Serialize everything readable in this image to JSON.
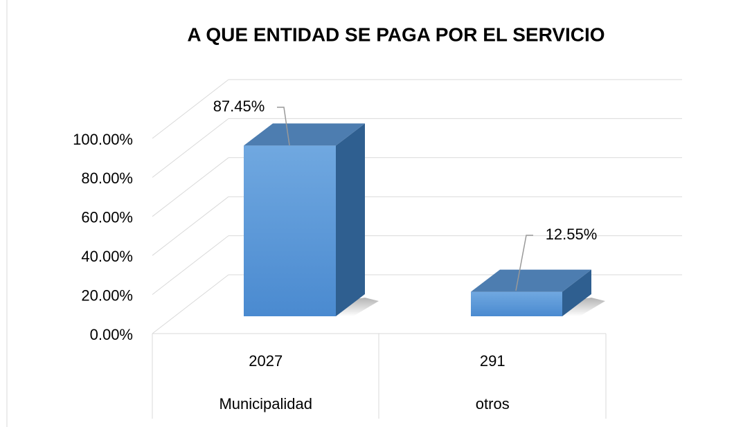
{
  "chart_data": {
    "type": "bar3d",
    "title": "A QUE ENTIDAD SE PAGA POR EL SERVICIO",
    "categories": [
      "Municipalidad",
      "otros"
    ],
    "category_counts": [
      2027,
      291
    ],
    "values": [
      87.45,
      12.55
    ],
    "value_labels": [
      "87.45%",
      "12.55%"
    ],
    "color": "#5b9bd5",
    "ylim": [
      0,
      100
    ],
    "yticks": [
      {
        "value": 0,
        "label": "0.00%"
      },
      {
        "value": 20,
        "label": "20.00%"
      },
      {
        "value": 40,
        "label": "40.00%"
      },
      {
        "value": 60,
        "label": "60.00%"
      },
      {
        "value": 80,
        "label": "80.00%"
      },
      {
        "value": 100,
        "label": "100.00%"
      }
    ],
    "grid": true
  }
}
